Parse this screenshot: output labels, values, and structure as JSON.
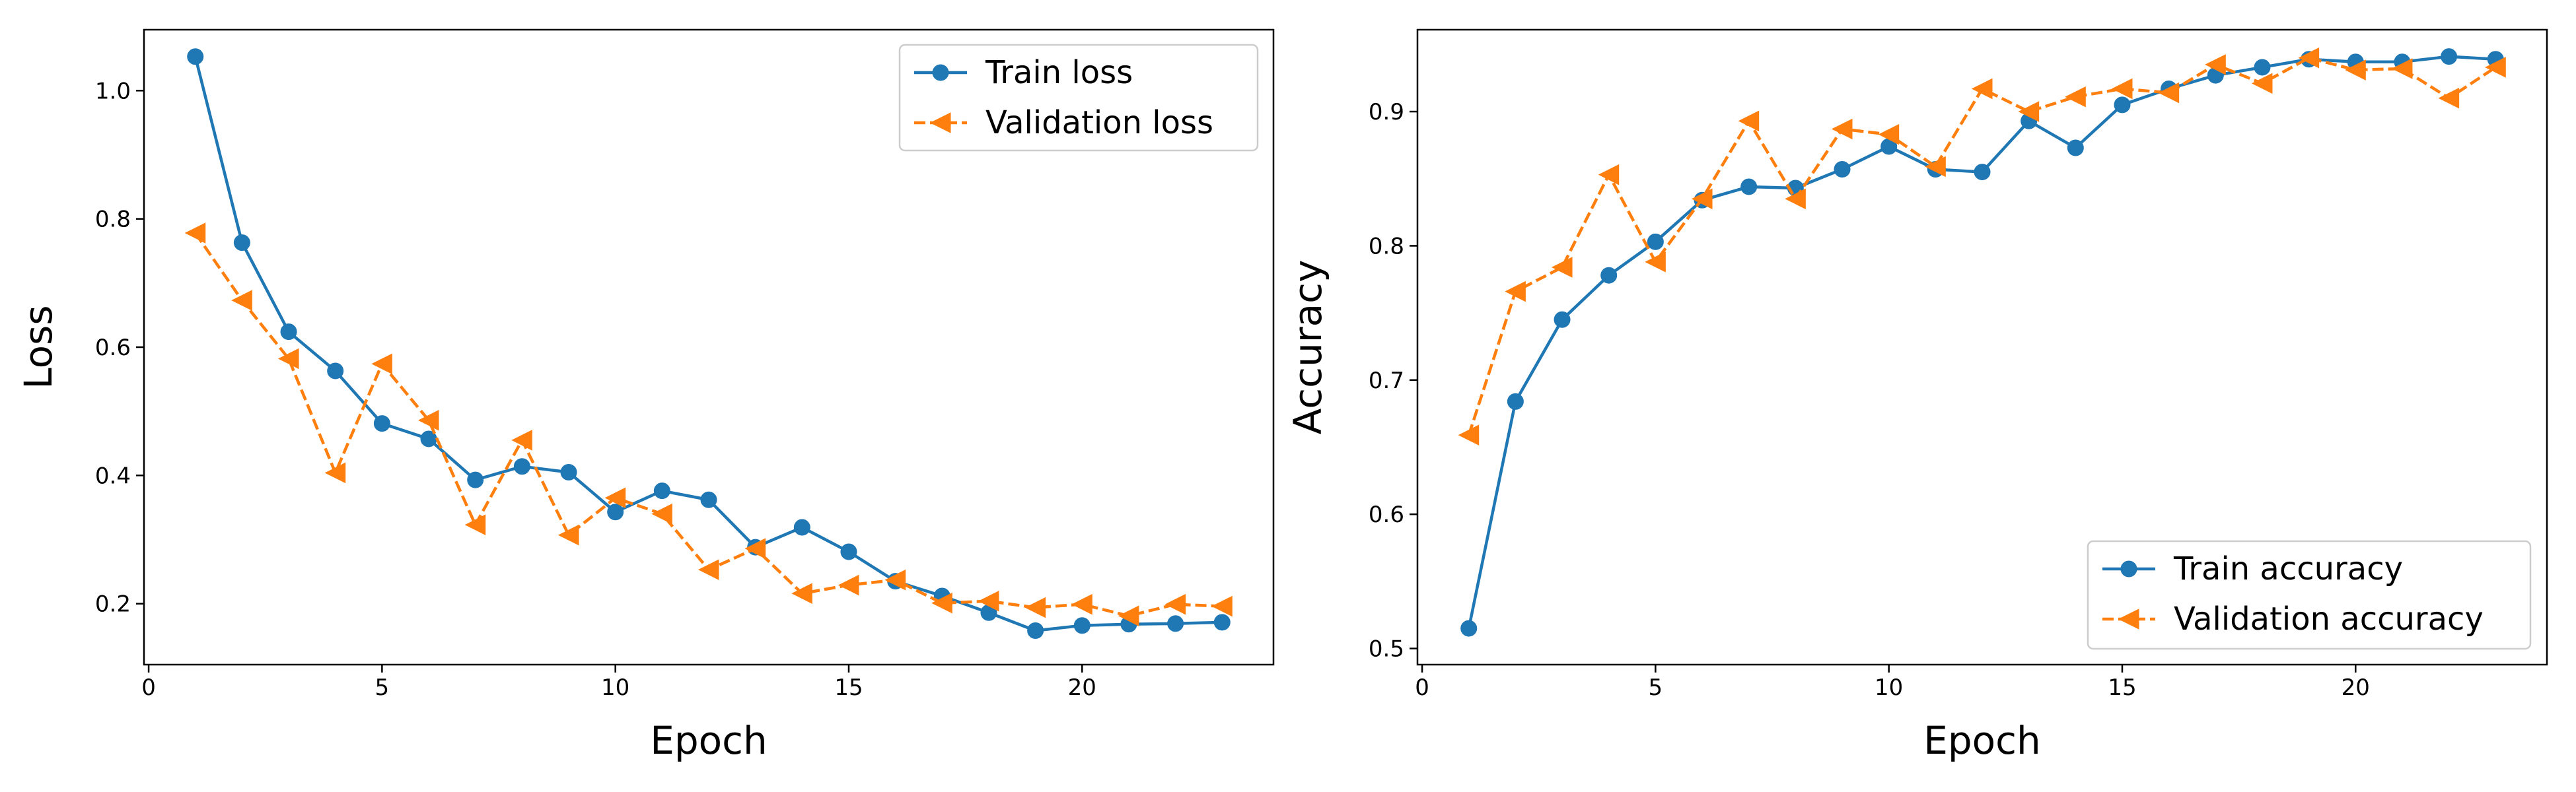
{
  "chart_data": [
    {
      "type": "line",
      "xlabel": "Epoch",
      "ylabel": "Loss",
      "xlim": [
        -0.1,
        24.1
      ],
      "ylim": [
        0.105,
        1.095
      ],
      "xticks": [
        0,
        5,
        10,
        15,
        20
      ],
      "yticks": [
        0.2,
        0.4,
        0.6,
        0.8,
        1.0
      ],
      "ytick_labels": [
        "0.2",
        "0.4",
        "0.6",
        "0.8",
        "1.0"
      ],
      "grid": false,
      "legend_position": "top-right",
      "x": [
        1,
        2,
        3,
        4,
        5,
        6,
        7,
        8,
        9,
        10,
        11,
        12,
        13,
        14,
        15,
        16,
        17,
        18,
        19,
        20,
        21,
        22,
        23
      ],
      "series": [
        {
          "name": "Train loss",
          "color": "#1f77b4",
          "marker": "circle",
          "dash": "solid",
          "values": [
            1.053,
            0.763,
            0.624,
            0.563,
            0.481,
            0.457,
            0.393,
            0.414,
            0.405,
            0.343,
            0.376,
            0.362,
            0.288,
            0.319,
            0.281,
            0.235,
            0.212,
            0.186,
            0.158,
            0.166,
            0.168,
            0.169,
            0.171
          ]
        },
        {
          "name": "Validation loss",
          "color": "#ff7f0e",
          "marker": "triangle-left",
          "dash": "dashed",
          "values": [
            0.778,
            0.673,
            0.582,
            0.404,
            0.574,
            0.486,
            0.323,
            0.455,
            0.307,
            0.365,
            0.34,
            0.253,
            0.286,
            0.216,
            0.229,
            0.237,
            0.201,
            0.204,
            0.194,
            0.199,
            0.181,
            0.199,
            0.196
          ]
        }
      ]
    },
    {
      "type": "line",
      "xlabel": "Epoch",
      "ylabel": "Accuracy",
      "xlim": [
        -0.1,
        24.1
      ],
      "ylim": [
        0.488,
        0.961
      ],
      "xticks": [
        0,
        5,
        10,
        15,
        20
      ],
      "yticks": [
        0.5,
        0.6,
        0.7,
        0.8,
        0.9
      ],
      "ytick_labels": [
        "0.5",
        "0.6",
        "0.7",
        "0.8",
        "0.9"
      ],
      "grid": false,
      "legend_position": "bottom-right",
      "x": [
        1,
        2,
        3,
        4,
        5,
        6,
        7,
        8,
        9,
        10,
        11,
        12,
        13,
        14,
        15,
        16,
        17,
        18,
        19,
        20,
        21,
        22,
        23
      ],
      "series": [
        {
          "name": "Train accuracy",
          "color": "#1f77b4",
          "marker": "circle",
          "dash": "solid",
          "values": [
            0.515,
            0.684,
            0.745,
            0.778,
            0.803,
            0.834,
            0.844,
            0.843,
            0.857,
            0.874,
            0.857,
            0.855,
            0.893,
            0.873,
            0.905,
            0.917,
            0.927,
            0.933,
            0.939,
            0.937,
            0.937,
            0.941,
            0.939
          ]
        },
        {
          "name": "Validation accuracy",
          "color": "#ff7f0e",
          "marker": "triangle-left",
          "dash": "dashed",
          "values": [
            0.659,
            0.766,
            0.784,
            0.853,
            0.788,
            0.835,
            0.893,
            0.835,
            0.887,
            0.883,
            0.859,
            0.917,
            0.9,
            0.911,
            0.917,
            0.914,
            0.935,
            0.921,
            0.94,
            0.931,
            0.932,
            0.91,
            0.933
          ]
        }
      ]
    }
  ]
}
